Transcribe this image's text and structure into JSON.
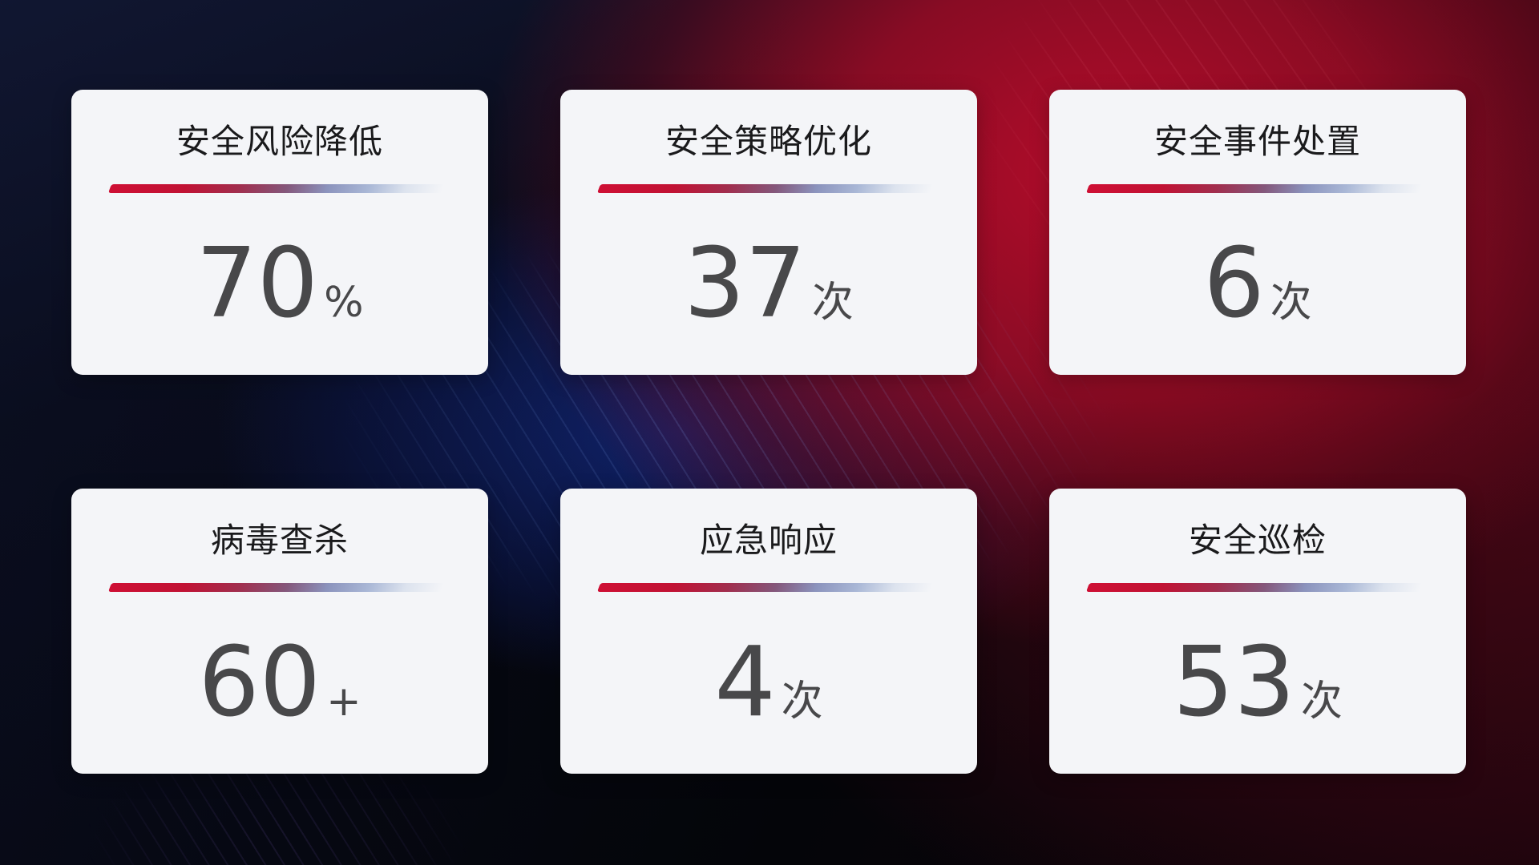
{
  "dashboard": {
    "cards": [
      {
        "title": "安全风险降低",
        "value": "70",
        "unit": "%"
      },
      {
        "title": "安全策略优化",
        "value": "37",
        "unit": "次"
      },
      {
        "title": "安全事件处置",
        "value": "6",
        "unit": "次"
      },
      {
        "title": "病毒查杀",
        "value": "60",
        "unit": "+"
      },
      {
        "title": "应急响应",
        "value": "4",
        "unit": "次"
      },
      {
        "title": "安全巡检",
        "value": "53",
        "unit": "次"
      }
    ],
    "colors": {
      "card_background": "#f4f5f8",
      "title_text": "#1a1a1c",
      "value_text": "#48484a",
      "divider_red": "#ce0f34",
      "divider_steel_blue": "#a9b7d6",
      "background_navy": "#0a0d1e",
      "background_red": "#a50d26",
      "background_blue_glow": "#16349f"
    }
  }
}
